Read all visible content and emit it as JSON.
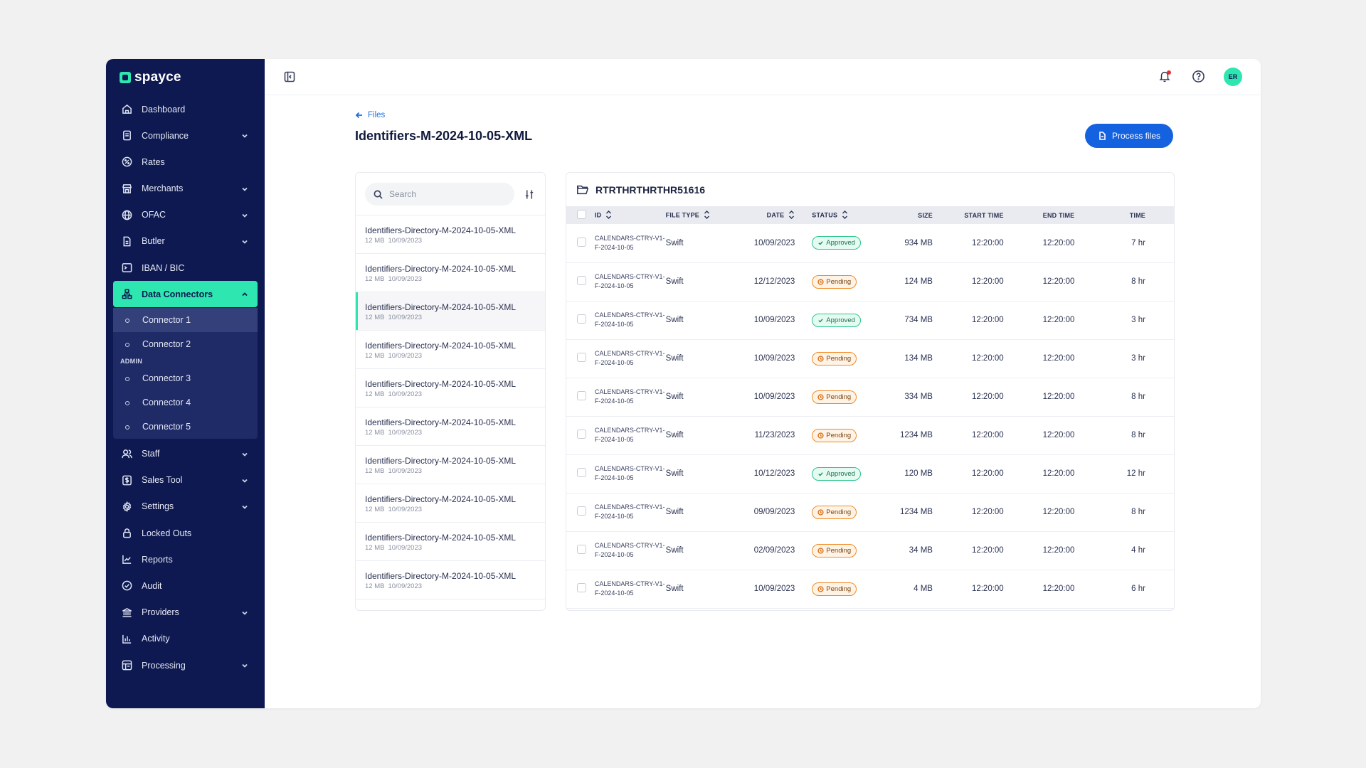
{
  "brand": {
    "name": "spayce"
  },
  "sidebar": {
    "items": [
      {
        "label": "Dashboard",
        "icon": "home-icon",
        "chevron": false
      },
      {
        "label": "Compliance",
        "icon": "document-icon",
        "chevron": true
      },
      {
        "label": "Rates",
        "icon": "percent-icon",
        "chevron": false
      },
      {
        "label": "Merchants",
        "icon": "store-icon",
        "chevron": true
      },
      {
        "label": "OFAC",
        "icon": "globe-icon",
        "chevron": true
      },
      {
        "label": "Butler",
        "icon": "file-icon",
        "chevron": true
      },
      {
        "label": "IBAN / BIC",
        "icon": "terminal-icon",
        "chevron": false
      }
    ],
    "active": {
      "label": "Data Connectors",
      "icon": "network-icon"
    },
    "sub_items": [
      "Connector 1",
      "Connector 2"
    ],
    "admin_label": "ADMIN",
    "admin_items": [
      "Connector 3",
      "Connector 4",
      "Connector 5"
    ],
    "items_after": [
      {
        "label": "Staff",
        "icon": "users-icon",
        "chevron": true
      },
      {
        "label": "Sales Tool",
        "icon": "dollar-icon",
        "chevron": true
      },
      {
        "label": "Settings",
        "icon": "gear-icon",
        "chevron": true
      },
      {
        "label": "Locked Outs",
        "icon": "lock-icon",
        "chevron": false
      },
      {
        "label": "Reports",
        "icon": "chart-line-icon",
        "chevron": false
      },
      {
        "label": "Audit",
        "icon": "check-circle-icon",
        "chevron": false
      },
      {
        "label": "Providers",
        "icon": "bank-icon",
        "chevron": true
      },
      {
        "label": "Activity",
        "icon": "bar-chart-icon",
        "chevron": false
      },
      {
        "label": "Processing",
        "icon": "processing-icon",
        "chevron": true
      }
    ]
  },
  "topbar": {
    "avatar_initials": "ER"
  },
  "breadcrumb": {
    "back_label": "Files"
  },
  "page": {
    "title": "Identifiers-M-2024-10-05-XML",
    "process_button": "Process files"
  },
  "search": {
    "placeholder": "Search"
  },
  "files": [
    {
      "name": "Identifiers-Directory-M-2024-10-05-XML",
      "size": "12 MB",
      "date": "10/09/2023"
    },
    {
      "name": "Identifiers-Directory-M-2024-10-05-XML",
      "size": "12 MB",
      "date": "10/09/2023"
    },
    {
      "name": "Identifiers-Directory-M-2024-10-05-XML",
      "size": "12 MB",
      "date": "10/09/2023"
    },
    {
      "name": "Identifiers-Directory-M-2024-10-05-XML",
      "size": "12 MB",
      "date": "10/09/2023"
    },
    {
      "name": "Identifiers-Directory-M-2024-10-05-XML",
      "size": "12 MB",
      "date": "10/09/2023"
    },
    {
      "name": "Identifiers-Directory-M-2024-10-05-XML",
      "size": "12 MB",
      "date": "10/09/2023"
    },
    {
      "name": "Identifiers-Directory-M-2024-10-05-XML",
      "size": "12 MB",
      "date": "10/09/2023"
    },
    {
      "name": "Identifiers-Directory-M-2024-10-05-XML",
      "size": "12 MB",
      "date": "10/09/2023"
    },
    {
      "name": "Identifiers-Directory-M-2024-10-05-XML",
      "size": "12 MB",
      "date": "10/09/2023"
    },
    {
      "name": "Identifiers-Directory-M-2024-10-05-XML",
      "size": "12 MB",
      "date": "10/09/2023"
    }
  ],
  "selected_file_index": 2,
  "table": {
    "title": "RTRTHRTHRTHR51616",
    "columns": [
      "ID",
      "FILE TYPE",
      "DATE",
      "STATUS",
      "SIZE",
      "START TIME",
      "END TIME",
      "TIME"
    ],
    "rows": [
      {
        "id": "CALENDARS-CTRY-V1-F-2024-10-05",
        "type": "Swift",
        "date": "10/09/2023",
        "status": "Approved",
        "size": "934 MB",
        "start": "12:20:00",
        "end": "12:20:00",
        "time": "7 hr"
      },
      {
        "id": "CALENDARS-CTRY-V1-F-2024-10-05",
        "type": "Swift",
        "date": "12/12/2023",
        "status": "Pending",
        "size": "124 MB",
        "start": "12:20:00",
        "end": "12:20:00",
        "time": "8 hr"
      },
      {
        "id": "CALENDARS-CTRY-V1-F-2024-10-05",
        "type": "Swift",
        "date": "10/09/2023",
        "status": "Approved",
        "size": "734 MB",
        "start": "12:20:00",
        "end": "12:20:00",
        "time": "3 hr"
      },
      {
        "id": "CALENDARS-CTRY-V1-F-2024-10-05",
        "type": "Swift",
        "date": "10/09/2023",
        "status": "Pending",
        "size": "134 MB",
        "start": "12:20:00",
        "end": "12:20:00",
        "time": "3 hr"
      },
      {
        "id": "CALENDARS-CTRY-V1-F-2024-10-05",
        "type": "Swift",
        "date": "10/09/2023",
        "status": "Pending",
        "size": "334 MB",
        "start": "12:20:00",
        "end": "12:20:00",
        "time": "8 hr"
      },
      {
        "id": "CALENDARS-CTRY-V1-F-2024-10-05",
        "type": "Swift",
        "date": "11/23/2023",
        "status": "Pending",
        "size": "1234 MB",
        "start": "12:20:00",
        "end": "12:20:00",
        "time": "8 hr"
      },
      {
        "id": "CALENDARS-CTRY-V1-F-2024-10-05",
        "type": "Swift",
        "date": "10/12/2023",
        "status": "Approved",
        "size": "120 MB",
        "start": "12:20:00",
        "end": "12:20:00",
        "time": "12 hr"
      },
      {
        "id": "CALENDARS-CTRY-V1-F-2024-10-05",
        "type": "Swift",
        "date": "09/09/2023",
        "status": "Pending",
        "size": "1234 MB",
        "start": "12:20:00",
        "end": "12:20:00",
        "time": "8 hr"
      },
      {
        "id": "CALENDARS-CTRY-V1-F-2024-10-05",
        "type": "Swift",
        "date": "02/09/2023",
        "status": "Pending",
        "size": "34 MB",
        "start": "12:20:00",
        "end": "12:20:00",
        "time": "4 hr"
      },
      {
        "id": "CALENDARS-CTRY-V1-F-2024-10-05",
        "type": "Swift",
        "date": "10/09/2023",
        "status": "Pending",
        "size": "4 MB",
        "start": "12:20:00",
        "end": "12:20:00",
        "time": "6 hr"
      }
    ]
  },
  "colors": {
    "sidebar_bg": "#0d1950",
    "accent": "#2ee6b0",
    "primary": "#1562e0",
    "approved": "#29c48c",
    "pending": "#f08a24"
  }
}
